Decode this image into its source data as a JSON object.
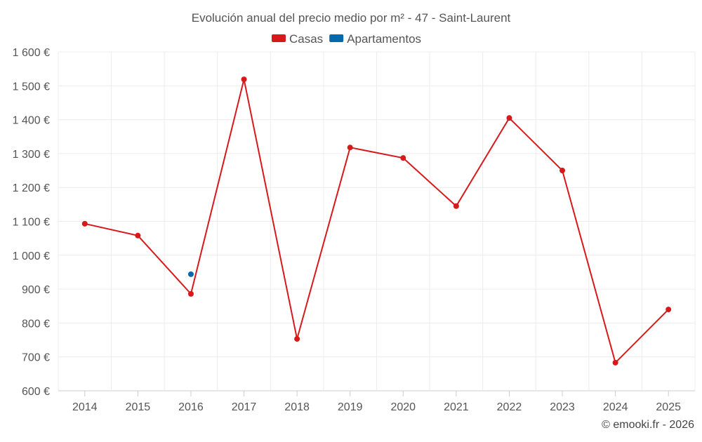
{
  "chart_data": {
    "type": "line",
    "title": "Evolución anual del precio medio por m² - 47 - Saint-Laurent",
    "categories": [
      "2014",
      "2015",
      "2016",
      "2017",
      "2018",
      "2019",
      "2020",
      "2021",
      "2022",
      "2023",
      "2024",
      "2025"
    ],
    "series": [
      {
        "name": "Casas",
        "color": "#d7191c",
        "values": [
          1093,
          1058,
          886,
          1519,
          753,
          1318,
          1287,
          1145,
          1405,
          1250,
          683,
          840
        ]
      },
      {
        "name": "Apartamentos",
        "color": "#0868ac",
        "values": [
          null,
          null,
          944,
          null,
          null,
          null,
          null,
          null,
          null,
          null,
          null,
          null
        ]
      }
    ],
    "ylim": [
      600,
      1600
    ],
    "yticks": [
      600,
      700,
      800,
      900,
      1000,
      1100,
      1200,
      1300,
      1400,
      1500,
      1600
    ],
    "ytick_labels": [
      "600 €",
      "700 €",
      "800 €",
      "900 €",
      "1 000 €",
      "1 100 €",
      "1 200 €",
      "1 300 €",
      "1 400 €",
      "1 500 €",
      "1 600 €"
    ],
    "xlabel": "",
    "ylabel": "",
    "grid": true,
    "legend_position": "top-center"
  },
  "credit": "© emooki.fr - 2026"
}
